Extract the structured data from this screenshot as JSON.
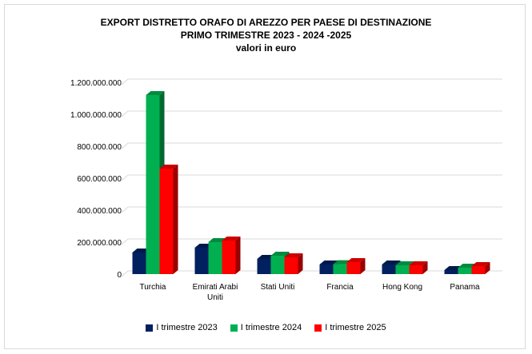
{
  "chart_data": {
    "type": "bar",
    "title": [
      "EXPORT DISTRETTO ORAFO DI AREZZO PER PAESE DI DESTINAZIONE",
      "PRIMO TRIMESTRE 2023 - 2024 -2025",
      "valori in euro"
    ],
    "categories": [
      "Turchia",
      "Emirati Arabi Uniti",
      "Stati Uniti",
      "Francia",
      "Hong Kong",
      "Panama"
    ],
    "series": [
      {
        "name": "I trimestre 2023",
        "color": "#002060",
        "values": [
          135000000,
          165000000,
          95000000,
          60000000,
          60000000,
          25000000
        ]
      },
      {
        "name": "I trimestre 2024",
        "color": "#00b050",
        "values": [
          1120000000,
          200000000,
          115000000,
          62000000,
          55000000,
          40000000
        ]
      },
      {
        "name": "I trimestre 2025",
        "color": "#ff0000",
        "values": [
          660000000,
          210000000,
          105000000,
          75000000,
          55000000,
          50000000
        ]
      }
    ],
    "yticks": [
      "0",
      "200.000.000",
      "400.000.000",
      "600.000.000",
      "800.000.000",
      "1.000.000.000",
      "1.200.000.000"
    ],
    "ylim": [
      0,
      1200000000
    ],
    "grid": true,
    "legend": "bottom"
  }
}
